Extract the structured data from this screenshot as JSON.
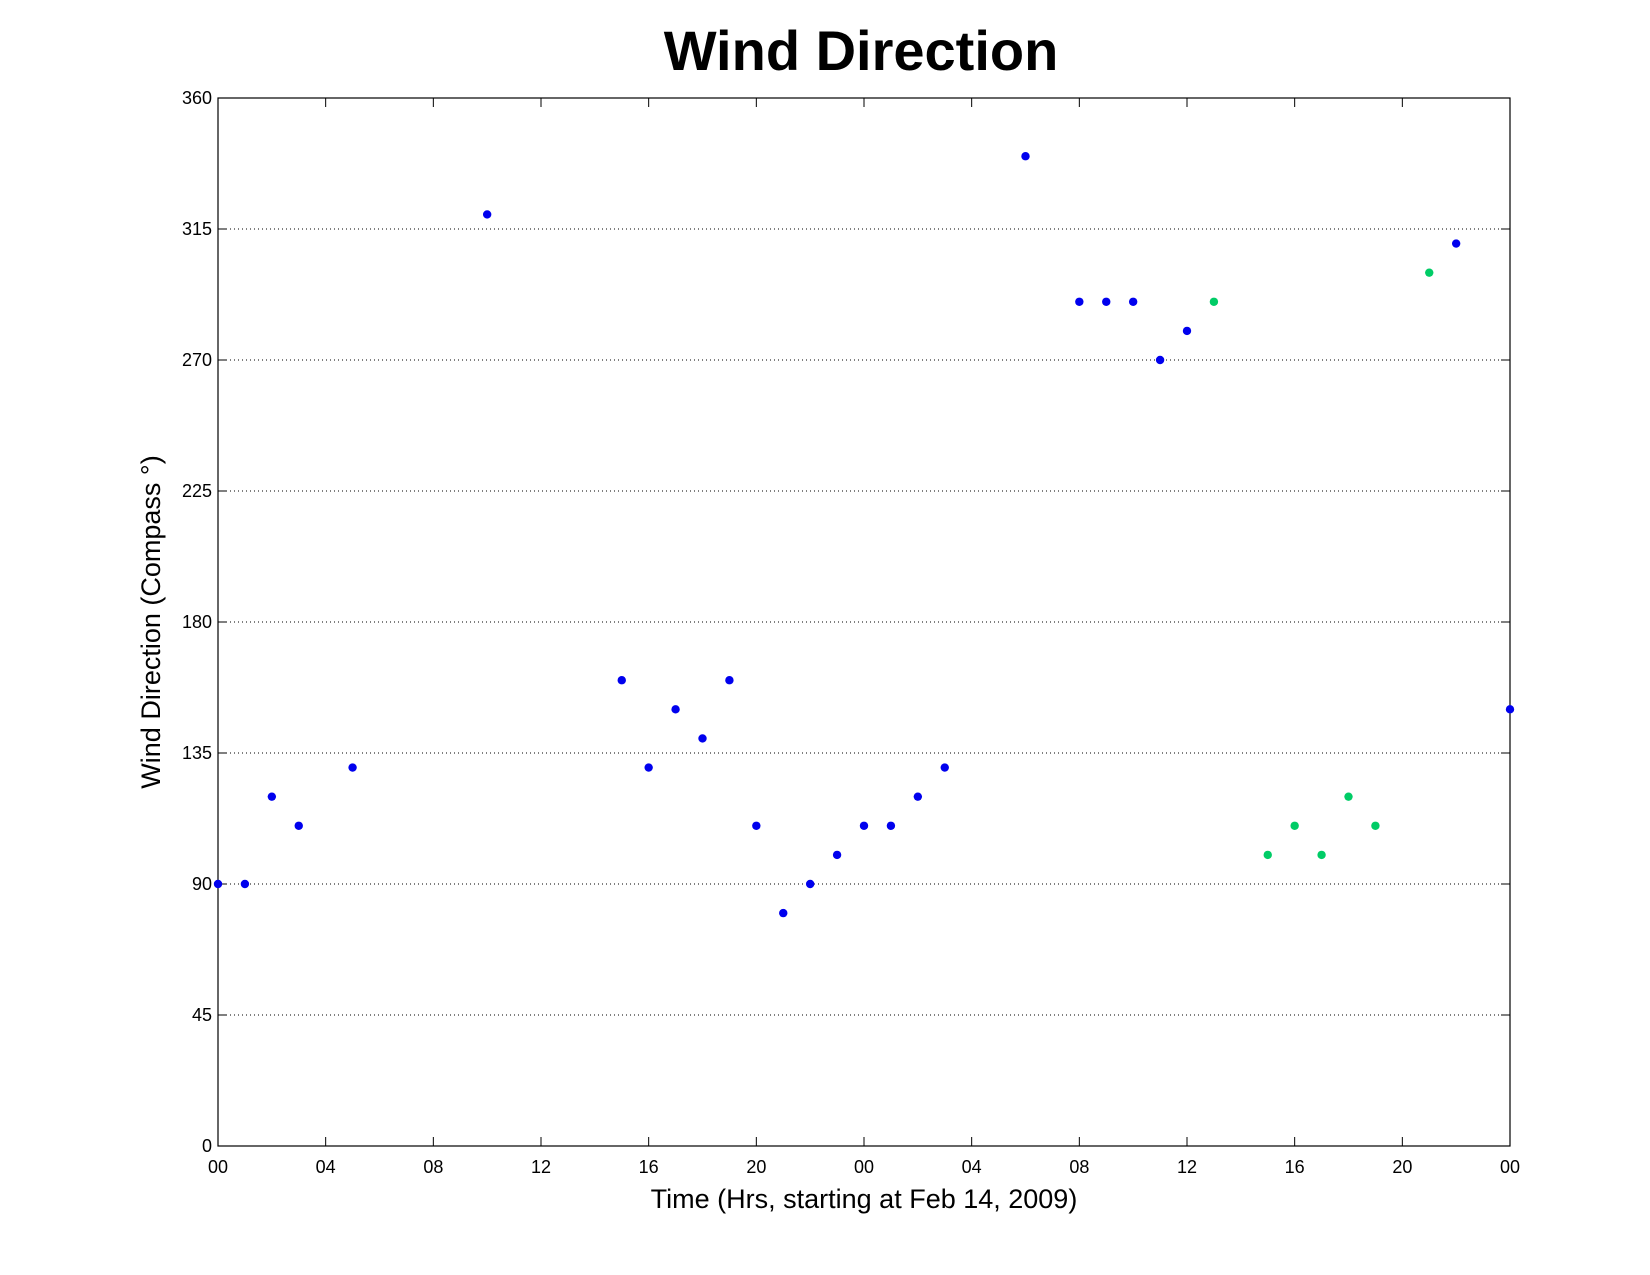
{
  "chart_data": {
    "type": "scatter",
    "title": "Wind Direction",
    "xlabel": "Time (Hrs, starting at Feb 14, 2009)",
    "ylabel": "Wind Direction (Compass  °)",
    "xlim": [
      0,
      48
    ],
    "ylim": [
      0,
      360
    ],
    "x_ticks": [
      0,
      4,
      8,
      12,
      16,
      20,
      24,
      28,
      32,
      36,
      40,
      44,
      48
    ],
    "x_tick_labels": [
      "00",
      "04",
      "08",
      "12",
      "16",
      "20",
      "00",
      "04",
      "08",
      "12",
      "16",
      "20",
      "00"
    ],
    "y_ticks": [
      0,
      45,
      90,
      135,
      180,
      225,
      270,
      315,
      360
    ],
    "grid": "horizontal dotted",
    "colors": {
      "blue": "#0000ee",
      "green": "#00cc66"
    },
    "series": [
      {
        "color": "blue",
        "x": [
          0,
          1,
          2,
          3,
          5,
          10,
          15,
          16,
          17,
          18,
          19,
          20,
          21,
          22,
          23,
          24,
          25,
          26,
          27,
          30,
          32,
          33,
          34,
          35,
          36,
          46,
          48
        ],
        "y": [
          90,
          90,
          120,
          110,
          130,
          320,
          160,
          130,
          150,
          140,
          160,
          110,
          80,
          90,
          100,
          110,
          110,
          120,
          130,
          340,
          290,
          290,
          290,
          270,
          280,
          310,
          150
        ]
      },
      {
        "color": "green",
        "x": [
          37,
          39,
          40,
          41,
          42,
          43,
          45
        ],
        "y": [
          290,
          100,
          110,
          100,
          120,
          110,
          300
        ]
      }
    ]
  }
}
